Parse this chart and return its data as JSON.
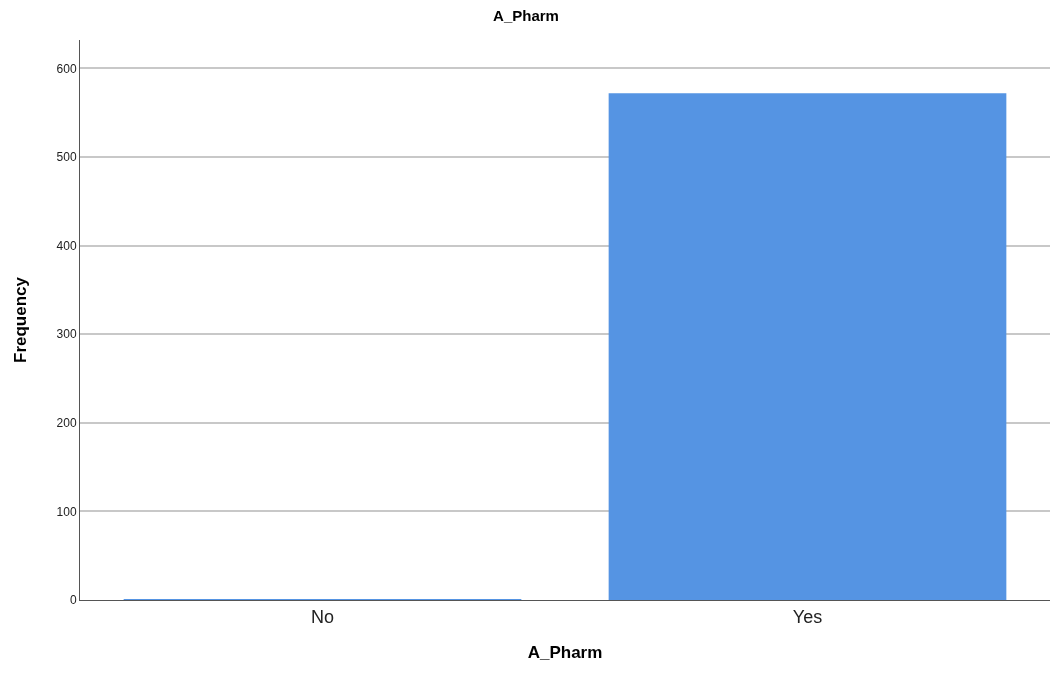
{
  "chart_data": {
    "type": "bar",
    "title": "A_Pharm",
    "xlabel": "A_Pharm",
    "ylabel": "Frequency",
    "categories": [
      "No",
      "Yes"
    ],
    "values": [
      1,
      572
    ],
    "color": "#5594e3",
    "ylim": [
      0,
      632
    ],
    "yticks": [
      0,
      100,
      200,
      300,
      400,
      500,
      600
    ],
    "grid": "y"
  }
}
